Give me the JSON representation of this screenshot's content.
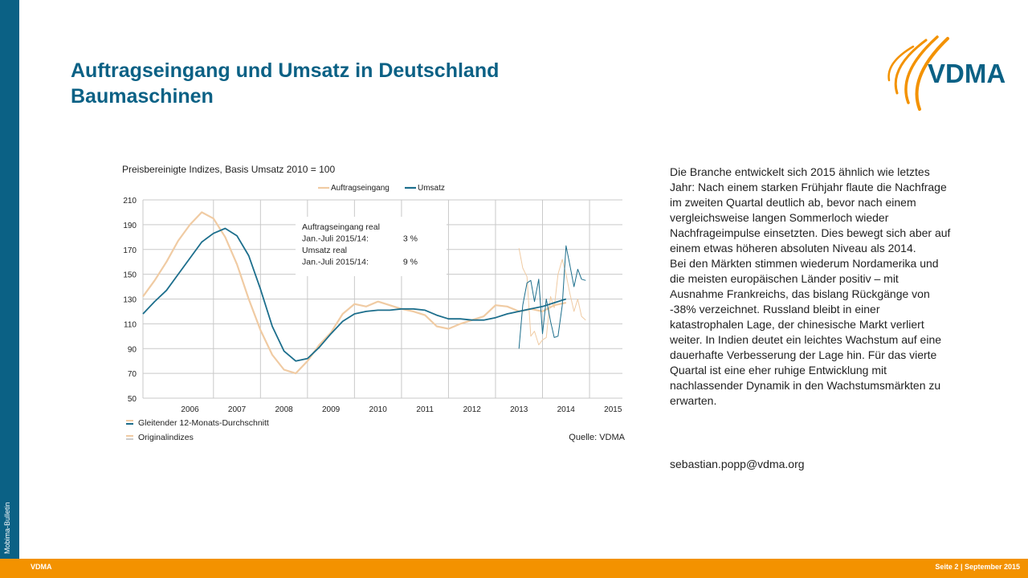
{
  "title_line1": "Auftragseingang und Umsatz in Deutschland",
  "title_line2": "Baumaschinen",
  "logo_text": "VDMA",
  "sidebar_label": "Mobima-Bulletin",
  "footer": {
    "left": "VDMA",
    "right": "Seite 2 | September 2015"
  },
  "colors": {
    "accent": "#0b6185",
    "orange": "#f39200",
    "auftragseingang": "#f0cba3",
    "umsatz": "#1c6e8c"
  },
  "body_text": "Die Branche entwickelt sich 2015 ähnlich wie letztes Jahr: Nach einem starken Frühjahr flaute die Nachfrage im zweiten Quartal deutlich ab, bevor nach einem vergleichsweise langen Sommerloch wieder Nachfrageimpulse einsetzten. Dies bewegt sich aber auf einem etwas höheren absoluten Niveau als 2014.\nBei den Märkten stimmen wiederum Nordamerika und die meisten europäischen Länder positiv – mit Ausnahme Frankreichs, das bislang Rückgänge von -38% verzeichnet. Russland bleibt in einer katastrophalen Lage, der chinesische Markt verliert weiter. In Indien deutet ein leichtes Wachstum auf eine dauerhafte Verbesserung der Lage hin. Für das vierte Quartal ist eine eher ruhige Entwicklung mit nachlassender Dynamik in den Wachstumsmärkten zu erwarten.",
  "email": "sebastian.popp@vdma.org",
  "chart_data": {
    "type": "line",
    "title": "Preisbereinigte Indizes, Basis Umsatz 2010 = 100",
    "source": "Quelle: VDMA",
    "ylim": [
      50,
      210
    ],
    "yticks": [
      50,
      70,
      90,
      110,
      130,
      150,
      170,
      190,
      210
    ],
    "xlim": [
      2005.5,
      2015.7
    ],
    "xtick_labels": [
      "2006",
      "2007",
      "2008",
      "2009",
      "2010",
      "2011",
      "2012",
      "2013",
      "2014",
      "2015"
    ],
    "grid": true,
    "legend_position": "top-right",
    "bottom_legend": [
      "Gleitender 12-Monats-Durchschnitt",
      "Originalindizes"
    ],
    "annotation": {
      "lines": [
        {
          "label": "Auftragseingang real",
          "value": ""
        },
        {
          "label": "Jan.-Juli 2015/14:",
          "value": "3 %"
        },
        {
          "label": "Umsatz real",
          "value": ""
        },
        {
          "label": "Jan.-Juli 2015/14:",
          "value": "9 %"
        }
      ]
    },
    "series": [
      {
        "name": "Auftragseingang",
        "kind": "moving-average",
        "x": [
          2005.5,
          2005.75,
          2006.0,
          2006.25,
          2006.5,
          2006.75,
          2007.0,
          2007.25,
          2007.5,
          2007.75,
          2008.0,
          2008.25,
          2008.5,
          2008.75,
          2009.0,
          2009.25,
          2009.5,
          2009.75,
          2010.0,
          2010.25,
          2010.5,
          2010.75,
          2011.0,
          2011.25,
          2011.5,
          2011.75,
          2012.0,
          2012.25,
          2012.5,
          2012.75,
          2013.0,
          2013.25,
          2013.5,
          2013.75,
          2014.0,
          2014.25,
          2014.5
        ],
        "y": [
          132,
          145,
          160,
          177,
          190,
          200,
          195,
          180,
          158,
          130,
          105,
          85,
          73,
          70,
          80,
          93,
          103,
          118,
          126,
          124,
          128,
          125,
          122,
          120,
          117,
          108,
          106,
          110,
          113,
          116,
          125,
          124,
          120,
          122,
          120,
          125,
          127
        ]
      },
      {
        "name": "Umsatz",
        "kind": "moving-average",
        "x": [
          2005.5,
          2005.75,
          2006.0,
          2006.25,
          2006.5,
          2006.75,
          2007.0,
          2007.25,
          2007.5,
          2007.75,
          2008.0,
          2008.25,
          2008.5,
          2008.75,
          2009.0,
          2009.25,
          2009.5,
          2009.75,
          2010.0,
          2010.25,
          2010.5,
          2010.75,
          2011.0,
          2011.25,
          2011.5,
          2011.75,
          2012.0,
          2012.25,
          2012.5,
          2012.75,
          2013.0,
          2013.25,
          2013.5,
          2013.75,
          2014.0,
          2014.25,
          2014.5
        ],
        "y": [
          118,
          128,
          137,
          150,
          163,
          176,
          183,
          187,
          181,
          165,
          138,
          108,
          88,
          80,
          82,
          91,
          102,
          112,
          118,
          120,
          121,
          121,
          122,
          122,
          121,
          117,
          114,
          114,
          113,
          113,
          115,
          118,
          120,
          122,
          124,
          127,
          130
        ]
      },
      {
        "name": "Auftragseingang (Original)",
        "kind": "original",
        "x": [
          2013.5,
          2013.58,
          2013.67,
          2013.75,
          2013.83,
          2013.92,
          2014.0,
          2014.08,
          2014.17,
          2014.25,
          2014.33,
          2014.42,
          2014.5,
          2014.58,
          2014.67,
          2014.75,
          2014.83,
          2014.92
        ],
        "y": [
          171,
          155,
          148,
          100,
          104,
          93,
          97,
          99,
          132,
          123,
          150,
          162,
          150,
          135,
          120,
          130,
          116,
          113
        ]
      },
      {
        "name": "Umsatz (Original)",
        "kind": "original",
        "x": [
          2013.5,
          2013.58,
          2013.67,
          2013.75,
          2013.83,
          2013.92,
          2014.0,
          2014.08,
          2014.17,
          2014.25,
          2014.33,
          2014.42,
          2014.5,
          2014.58,
          2014.67,
          2014.75,
          2014.83,
          2014.92
        ],
        "y": [
          90,
          125,
          143,
          145,
          128,
          146,
          102,
          130,
          112,
          99,
          100,
          125,
          173,
          158,
          140,
          154,
          146,
          145
        ]
      }
    ]
  }
}
